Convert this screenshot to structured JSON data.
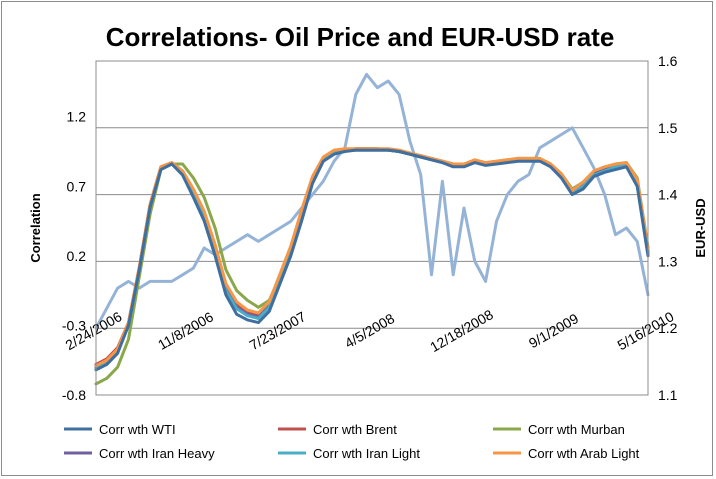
{
  "chart_data": {
    "type": "line",
    "title": "Correlations- Oil Price and EUR-USD rate",
    "ylabel": "Correlation",
    "y2label": "EUR-USD",
    "ylim": [
      -0.8,
      1.6
    ],
    "y2lim": [
      1.1,
      1.6
    ],
    "yticks": [
      -0.8,
      -0.3,
      0.2,
      0.7,
      1.2
    ],
    "yticks_labels": [
      "-0.8",
      "-0.3",
      "0.2",
      "0.7",
      "1.2"
    ],
    "y2ticks": [
      1.1,
      1.2,
      1.3,
      1.4,
      1.5,
      1.6
    ],
    "y2ticks_labels": [
      "1.1",
      "1.2",
      "1.3",
      "1.4",
      "1.5",
      "1.6"
    ],
    "xlim": [
      0,
      51
    ],
    "xticks": [
      0,
      8.5,
      17,
      25.5,
      34,
      42.5,
      51
    ],
    "xticks_labels": [
      "2/24/2006",
      "11/8/2006",
      "7/23/2007",
      "4/5/2008",
      "12/18/2008",
      "9/1/2009",
      "5/16/2010"
    ],
    "grid": true,
    "legend_position": "bottom",
    "x": [
      0,
      1,
      2,
      3,
      4,
      5,
      6,
      7,
      8,
      9,
      10,
      11,
      12,
      13,
      14,
      15,
      16,
      17,
      18,
      19,
      20,
      21,
      22,
      23,
      24,
      25,
      26,
      27,
      28,
      29,
      30,
      31,
      32,
      33,
      34,
      35,
      36,
      37,
      38,
      39,
      40,
      41,
      42,
      43,
      44,
      45,
      46,
      47,
      48,
      49,
      50,
      51
    ],
    "series": [
      {
        "name": "Corr wth WTI",
        "color": "#3f6f9f",
        "axis": "left",
        "values": [
          -0.62,
          -0.58,
          -0.5,
          -0.3,
          0.1,
          0.55,
          0.82,
          0.86,
          0.78,
          0.62,
          0.45,
          0.2,
          -0.08,
          -0.22,
          -0.26,
          -0.28,
          -0.2,
          0.0,
          0.2,
          0.45,
          0.72,
          0.88,
          0.93,
          0.95,
          0.96,
          0.96,
          0.96,
          0.96,
          0.95,
          0.93,
          0.91,
          0.89,
          0.87,
          0.84,
          0.84,
          0.87,
          0.85,
          0.86,
          0.87,
          0.88,
          0.88,
          0.88,
          0.84,
          0.76,
          0.64,
          0.68,
          0.77,
          0.8,
          0.82,
          0.84,
          0.7,
          0.2
        ]
      },
      {
        "name": "Corr wth Brent",
        "color": "#c0504d",
        "axis": "left",
        "values": [
          -0.58,
          -0.54,
          -0.46,
          -0.28,
          0.12,
          0.57,
          0.84,
          0.87,
          0.8,
          0.67,
          0.5,
          0.27,
          -0.02,
          -0.15,
          -0.2,
          -0.22,
          -0.14,
          0.06,
          0.26,
          0.52,
          0.76,
          0.9,
          0.95,
          0.96,
          0.97,
          0.97,
          0.97,
          0.96,
          0.95,
          0.93,
          0.91,
          0.9,
          0.88,
          0.85,
          0.85,
          0.88,
          0.86,
          0.87,
          0.88,
          0.89,
          0.89,
          0.89,
          0.85,
          0.78,
          0.66,
          0.72,
          0.8,
          0.83,
          0.85,
          0.86,
          0.74,
          0.24
        ]
      },
      {
        "name": "Corr wth Murban",
        "color": "#8aa84b",
        "axis": "left",
        "values": [
          -0.72,
          -0.68,
          -0.6,
          -0.4,
          0.05,
          0.5,
          0.82,
          0.86,
          0.86,
          0.76,
          0.62,
          0.4,
          0.1,
          -0.05,
          -0.12,
          -0.17,
          -0.12,
          0.05,
          0.22,
          0.47,
          0.74,
          0.88,
          0.94,
          0.96,
          0.97,
          0.97,
          0.97,
          0.96,
          0.95,
          0.93,
          0.92,
          0.9,
          0.88,
          0.86,
          0.86,
          0.88,
          0.87,
          0.88,
          0.89,
          0.9,
          0.9,
          0.9,
          0.86,
          0.79,
          0.68,
          0.73,
          0.8,
          0.83,
          0.86,
          0.87,
          0.76,
          0.26
        ]
      },
      {
        "name": "Corr wth Iran Heavy",
        "color": "#7060a0",
        "axis": "left",
        "values": [
          -0.6,
          -0.56,
          -0.48,
          -0.29,
          0.11,
          0.56,
          0.83,
          0.86,
          0.79,
          0.65,
          0.48,
          0.24,
          -0.04,
          -0.17,
          -0.22,
          -0.24,
          -0.16,
          0.04,
          0.24,
          0.5,
          0.75,
          0.89,
          0.94,
          0.96,
          0.96,
          0.96,
          0.96,
          0.96,
          0.95,
          0.93,
          0.91,
          0.89,
          0.87,
          0.85,
          0.85,
          0.88,
          0.86,
          0.87,
          0.88,
          0.89,
          0.89,
          0.89,
          0.85,
          0.77,
          0.65,
          0.7,
          0.79,
          0.82,
          0.84,
          0.85,
          0.72,
          0.22
        ]
      },
      {
        "name": "Corr wth Iran Light",
        "color": "#4aacc6",
        "axis": "left",
        "values": [
          -0.61,
          -0.57,
          -0.49,
          -0.3,
          0.1,
          0.56,
          0.83,
          0.86,
          0.79,
          0.64,
          0.47,
          0.23,
          -0.05,
          -0.18,
          -0.23,
          -0.25,
          -0.17,
          0.03,
          0.23,
          0.49,
          0.74,
          0.89,
          0.94,
          0.96,
          0.96,
          0.96,
          0.96,
          0.96,
          0.95,
          0.93,
          0.91,
          0.89,
          0.87,
          0.85,
          0.85,
          0.88,
          0.86,
          0.87,
          0.88,
          0.89,
          0.89,
          0.89,
          0.85,
          0.77,
          0.65,
          0.7,
          0.78,
          0.81,
          0.84,
          0.85,
          0.71,
          0.21
        ]
      },
      {
        "name": "Corr wth Arab Light",
        "color": "#f79646",
        "axis": "left",
        "values": [
          -0.59,
          -0.55,
          -0.47,
          -0.28,
          0.12,
          0.57,
          0.84,
          0.87,
          0.81,
          0.68,
          0.52,
          0.28,
          0.0,
          -0.13,
          -0.19,
          -0.21,
          -0.13,
          0.07,
          0.27,
          0.53,
          0.77,
          0.91,
          0.96,
          0.97,
          0.97,
          0.97,
          0.97,
          0.97,
          0.96,
          0.94,
          0.92,
          0.9,
          0.88,
          0.86,
          0.86,
          0.89,
          0.87,
          0.88,
          0.89,
          0.9,
          0.9,
          0.9,
          0.86,
          0.79,
          0.67,
          0.73,
          0.81,
          0.84,
          0.86,
          0.87,
          0.75,
          0.25
        ]
      },
      {
        "name": "EUR-USD",
        "color": "#95b3d7",
        "axis": "right",
        "values": [
          1.2,
          1.23,
          1.26,
          1.27,
          1.26,
          1.27,
          1.27,
          1.27,
          1.28,
          1.29,
          1.32,
          1.31,
          1.32,
          1.33,
          1.34,
          1.33,
          1.34,
          1.35,
          1.36,
          1.38,
          1.4,
          1.42,
          1.45,
          1.47,
          1.55,
          1.58,
          1.56,
          1.57,
          1.55,
          1.48,
          1.43,
          1.28,
          1.42,
          1.28,
          1.38,
          1.3,
          1.27,
          1.36,
          1.4,
          1.42,
          1.43,
          1.47,
          1.48,
          1.49,
          1.5,
          1.47,
          1.44,
          1.4,
          1.34,
          1.35,
          1.33,
          1.25
        ]
      }
    ]
  }
}
